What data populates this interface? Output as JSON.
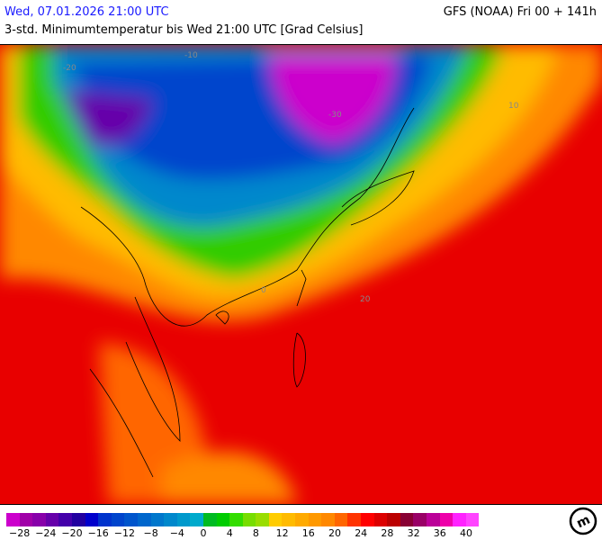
{
  "header": {
    "valid_time": "Wed, 07.01.2026 21:00 UTC",
    "model_run": "GFS (NOAA) Fri 00 + 141h",
    "parameter": "3-std. Minimumtemperatur bis Wed 21:00 UTC [Grad Celsius]"
  },
  "map": {
    "region": "East Asia / Southeast Asia",
    "contour_labels": [
      "-30",
      "-20",
      "-10",
      "0",
      "10",
      "20"
    ]
  },
  "legend": {
    "colors": [
      "#cc00cc",
      "#a000a8",
      "#8800aa",
      "#6600aa",
      "#4400aa",
      "#2200a0",
      "#0000cc",
      "#0033cc",
      "#0044cc",
      "#0055cc",
      "#0066cc",
      "#0077cc",
      "#0088cc",
      "#0099cc",
      "#00aacc",
      "#00bb22",
      "#00cc00",
      "#33dd00",
      "#77dd00",
      "#99dd00",
      "#ffcc00",
      "#ffbb00",
      "#ffaa00",
      "#ff9900",
      "#ff8800",
      "#ff6600",
      "#ff3300",
      "#ff0000",
      "#dd0000",
      "#bb0000",
      "#880033",
      "#990066",
      "#bb0099",
      "#ee00aa",
      "#ff22ff",
      "#ff44ff"
    ],
    "ticks": [
      "−28",
      "−24",
      "−20",
      "−16",
      "−12",
      "−8",
      "−4",
      "0",
      "4",
      "8",
      "12",
      "16",
      "20",
      "24",
      "28",
      "32",
      "36",
      "40"
    ]
  },
  "logo": {
    "text": "m"
  }
}
